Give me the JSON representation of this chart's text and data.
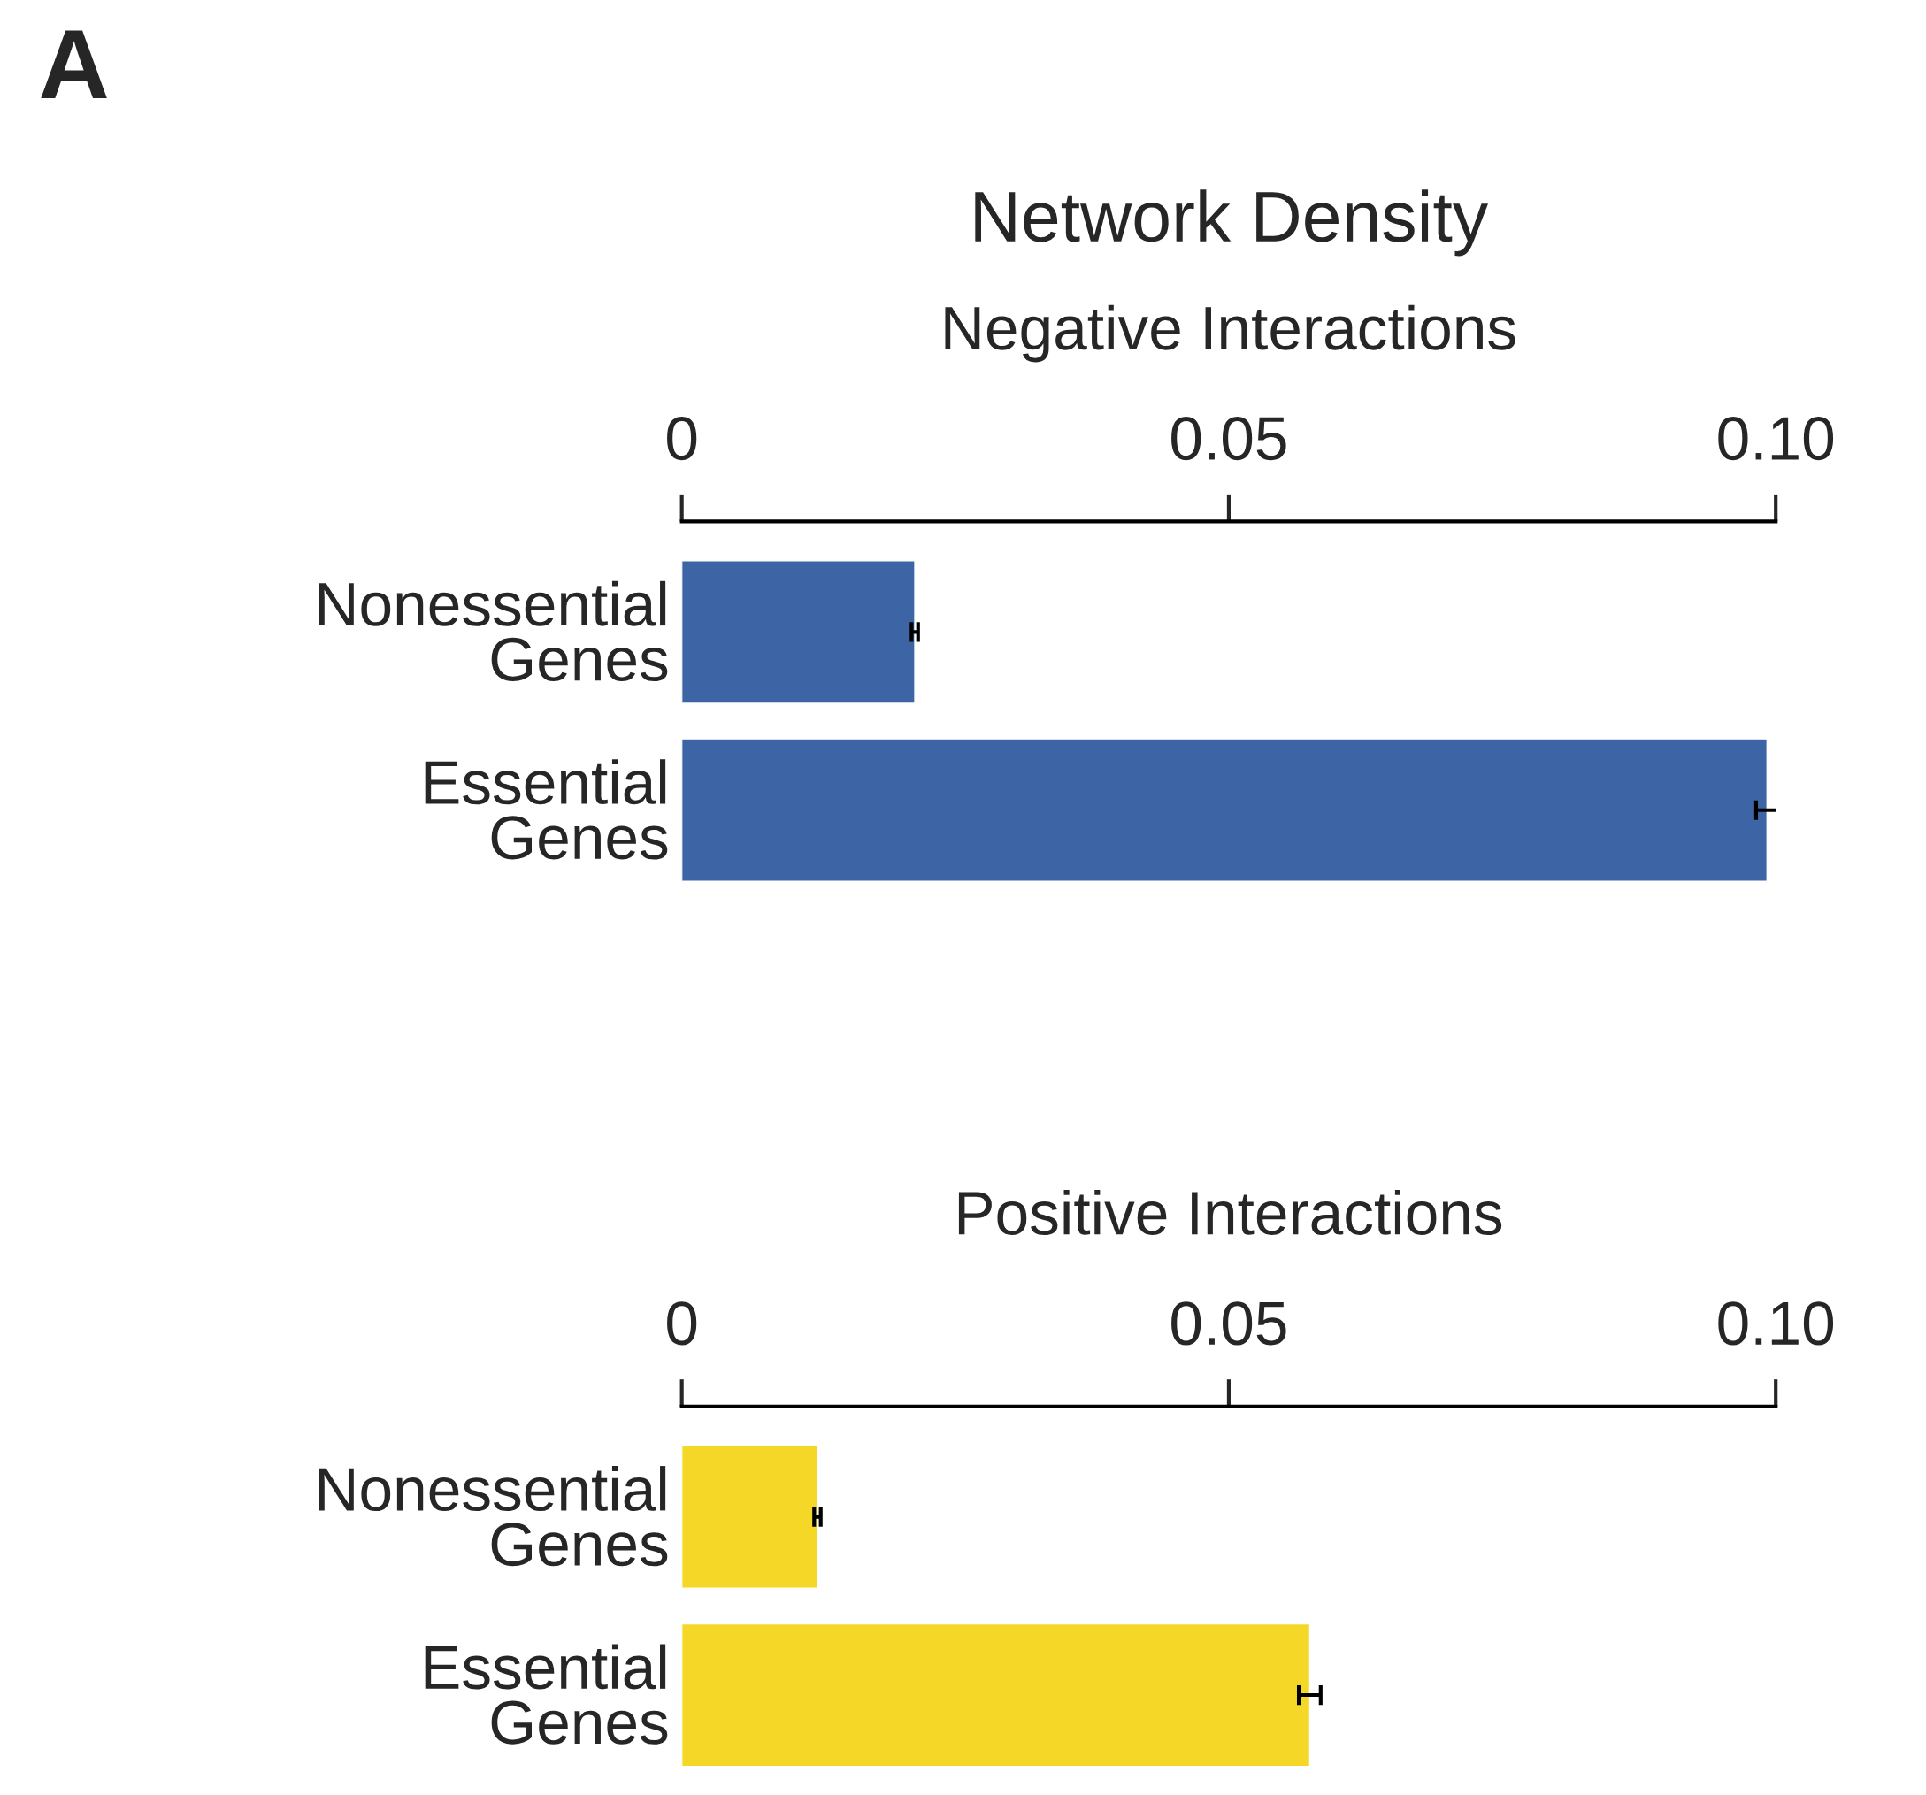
{
  "chart_data": [
    {
      "type": "bar",
      "orientation": "horizontal",
      "title": "Network Density",
      "subtitle": "Negative Interactions",
      "annotations": [
        "A"
      ],
      "categories": [
        "Nonessential\nGenes",
        "Essential\nGenes"
      ],
      "series": [
        {
          "color": "#3d65a5",
          "values": [
            0.0213,
            0.0992
          ],
          "errors": [
            0.0003,
            0.001
          ]
        }
      ],
      "xlim": [
        0,
        0.1
      ],
      "xticks": [
        0,
        0.05,
        {
          "value": 0.1,
          "label": "0.10"
        }
      ],
      "grid": false,
      "legend": false
    },
    {
      "type": "bar",
      "orientation": "horizontal",
      "title": "Positive Interactions",
      "categories": [
        "Nonessential\nGenes",
        "Essential\nGenes"
      ],
      "series": [
        {
          "color": "#f5d727",
          "values": [
            0.0124,
            0.0574
          ],
          "errors": [
            0.0003,
            0.001
          ]
        }
      ],
      "xlim": [
        0,
        0.1
      ],
      "xticks": [
        0,
        0.05,
        {
          "value": 0.1,
          "label": "0.10"
        }
      ],
      "grid": false,
      "legend": false
    }
  ]
}
